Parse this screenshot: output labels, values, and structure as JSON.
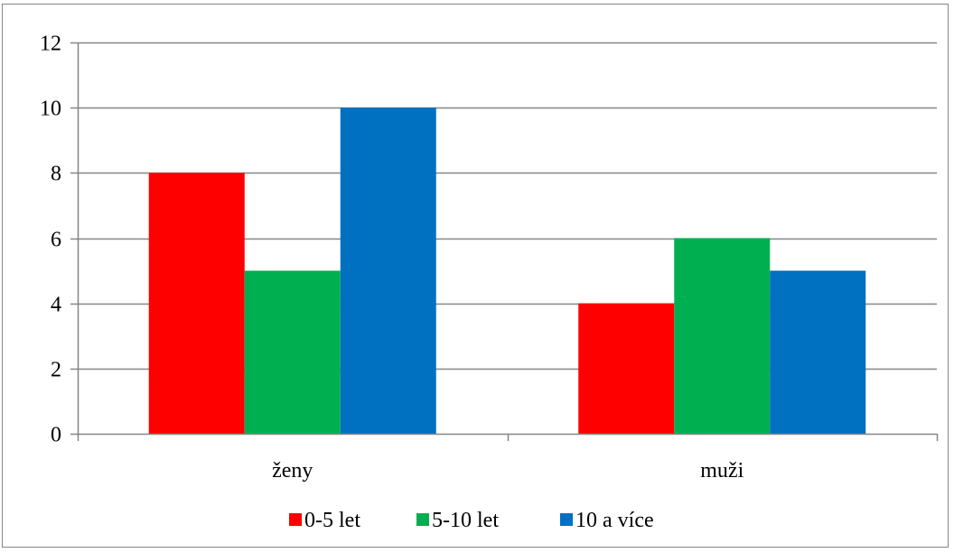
{
  "chart_data": {
    "type": "bar",
    "categories": [
      "ženy",
      "muži"
    ],
    "series": [
      {
        "name": "0-5 let",
        "values": [
          8,
          4
        ],
        "color": "#FF0000"
      },
      {
        "name": "5-10 let",
        "values": [
          5,
          6
        ],
        "color": "#00B050"
      },
      {
        "name": "10 a více",
        "values": [
          10,
          5
        ],
        "color": "#0070C0"
      }
    ],
    "title": "",
    "xlabel": "",
    "ylabel": "",
    "ylim": [
      0,
      12
    ],
    "yticks": [
      0,
      2,
      4,
      6,
      8,
      10,
      12
    ],
    "grid": true,
    "legend_position": "bottom",
    "colors": {
      "grid": "#868686",
      "axis": "#868686",
      "border": "#868686"
    }
  }
}
